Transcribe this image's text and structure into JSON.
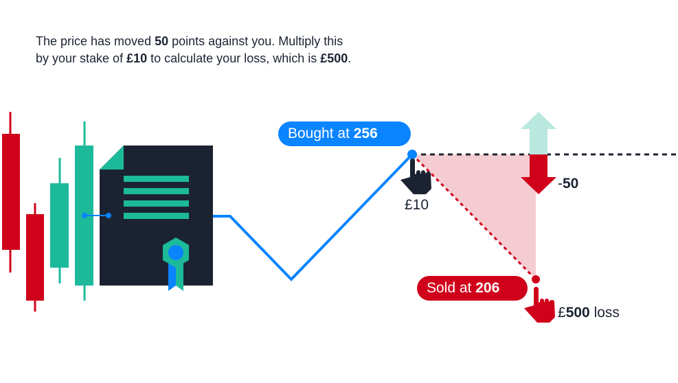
{
  "intro": {
    "line1_a": "The price has moved ",
    "line1_b": "50",
    "line1_c": " points against you. Multiply this",
    "line2_a": "by your stake of ",
    "line2_b": "£10",
    "line2_c": " to calculate your loss, which is ",
    "line2_d": "£500",
    "line2_e": "."
  },
  "bought": {
    "label": "Bought at ",
    "value": "256"
  },
  "sold": {
    "label": "Sold at ",
    "value": "206"
  },
  "stake": "£10",
  "move": {
    "sign": "-",
    "value": "50"
  },
  "loss": {
    "currency": "£",
    "value": "500",
    "suffix": " loss"
  },
  "colors": {
    "blue": "#0a84ff",
    "red": "#d0021b",
    "teal": "#1cb99a",
    "navy": "#1b2332",
    "pink": "#f5ccd2",
    "mint": "#b9e8df"
  },
  "icons": [
    "candlestick-chart-icon",
    "certificate-document-icon",
    "pointing-hand-icon"
  ]
}
